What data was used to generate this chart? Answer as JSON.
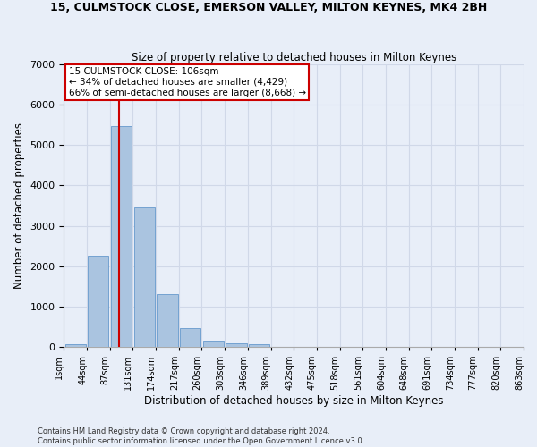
{
  "title_line1": "15, CULMSTOCK CLOSE, EMERSON VALLEY, MILTON KEYNES, MK4 2BH",
  "title_line2": "Size of property relative to detached houses in Milton Keynes",
  "xlabel": "Distribution of detached houses by size in Milton Keynes",
  "ylabel": "Number of detached properties",
  "bar_values": [
    75,
    2270,
    5470,
    3450,
    1310,
    470,
    155,
    90,
    55,
    0,
    0,
    0,
    0,
    0,
    0,
    0,
    0,
    0,
    0,
    0
  ],
  "bar_color": "#aac4e0",
  "bar_edge_color": "#6699cc",
  "x_labels": [
    "1sqm",
    "44sqm",
    "87sqm",
    "131sqm",
    "174sqm",
    "217sqm",
    "260sqm",
    "303sqm",
    "346sqm",
    "389sqm",
    "432sqm",
    "475sqm",
    "518sqm",
    "561sqm",
    "604sqm",
    "648sqm",
    "691sqm",
    "734sqm",
    "777sqm",
    "820sqm",
    "863sqm"
  ],
  "ylim": [
    0,
    7000
  ],
  "yticks": [
    0,
    1000,
    2000,
    3000,
    4000,
    5000,
    6000,
    7000
  ],
  "grid_color": "#d0d8e8",
  "bg_color": "#e8eef8",
  "annotation_line1": "15 CULMSTOCK CLOSE: 106sqm",
  "annotation_line2": "← 34% of detached houses are smaller (4,429)",
  "annotation_line3": "66% of semi-detached houses are larger (8,668) →",
  "annotation_box_color": "#ffffff",
  "annotation_box_edge": "#cc0000",
  "vline_color": "#cc0000",
  "vline_x": 1.9,
  "footer_line1": "Contains HM Land Registry data © Crown copyright and database right 2024.",
  "footer_line2": "Contains public sector information licensed under the Open Government Licence v3.0.",
  "bar_width": 0.9,
  "n_bars": 20
}
